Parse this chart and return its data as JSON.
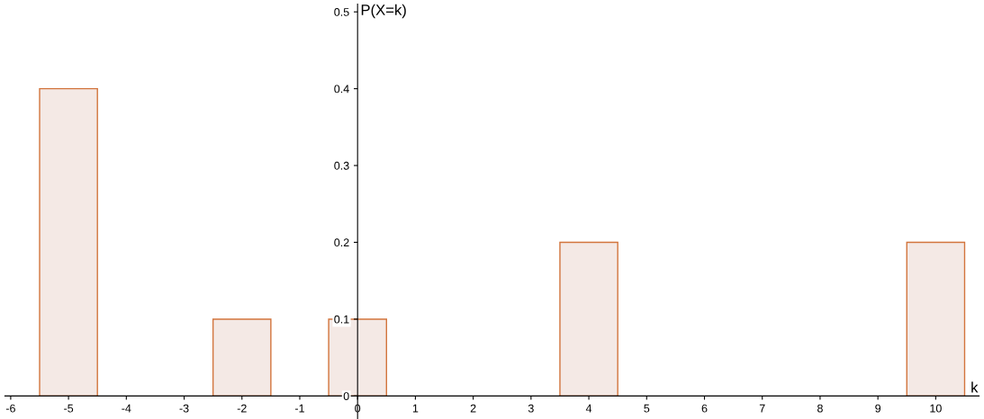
{
  "chart_data": {
    "type": "bar",
    "xlabel": "k",
    "ylabel": "P(X=k)",
    "x": [
      -5,
      -2,
      0,
      4,
      10
    ],
    "values": [
      0.4,
      0.1,
      0.1,
      0.2,
      0.2
    ],
    "color": "#f4e9e5",
    "xlim": [
      -6.1,
      10.75
    ],
    "ylim": [
      -0.03,
      0.51
    ],
    "xticks": [
      -6,
      -5,
      -4,
      -3,
      -2,
      -1,
      0,
      1,
      2,
      3,
      4,
      5,
      6,
      7,
      8,
      9,
      10
    ],
    "yticks": [
      0,
      0.1,
      0.2,
      0.3,
      0.4,
      0.5
    ],
    "grid": false
  }
}
